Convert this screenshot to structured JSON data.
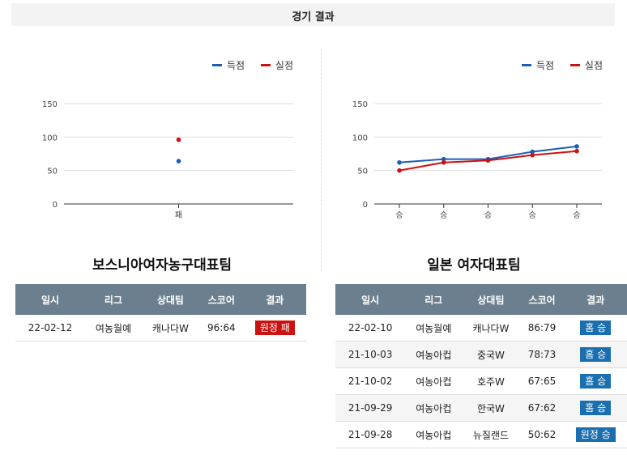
{
  "header": {
    "title": "경기 결과"
  },
  "legend": {
    "scored": "득점",
    "conceded": "실점",
    "scored_color": "#1a5fb4",
    "conceded_color": "#cc1111"
  },
  "left": {
    "team": "보스니아여자농구대표팀",
    "columns": [
      "일시",
      "리그",
      "상대팀",
      "스코어",
      "결과"
    ],
    "rows": [
      {
        "date": "22-02-12",
        "league": "여농월예",
        "opponent": "캐나다W",
        "score": "96:64",
        "result": "원정 패",
        "outcome": "loss"
      }
    ]
  },
  "right": {
    "team": "일본 여자대표팀",
    "columns": [
      "일시",
      "리그",
      "상대팀",
      "스코어",
      "결과"
    ],
    "rows": [
      {
        "date": "22-02-10",
        "league": "여농월예",
        "opponent": "캐나다W",
        "score": "86:79",
        "result": "홈 승",
        "outcome": "win"
      },
      {
        "date": "21-10-03",
        "league": "여농아컵",
        "opponent": "중국W",
        "score": "78:73",
        "result": "홈 승",
        "outcome": "win"
      },
      {
        "date": "21-10-02",
        "league": "여농아컵",
        "opponent": "호주W",
        "score": "67:65",
        "result": "홈 승",
        "outcome": "win"
      },
      {
        "date": "21-09-29",
        "league": "여농아컵",
        "opponent": "한국W",
        "score": "67:62",
        "result": "홈 승",
        "outcome": "win"
      },
      {
        "date": "21-09-28",
        "league": "여농아컵",
        "opponent": "뉴질랜드",
        "score": "50:62",
        "result": "원정 승",
        "outcome": "win"
      }
    ]
  },
  "chart_data": [
    {
      "type": "line",
      "categories": [
        "패"
      ],
      "series": [
        {
          "name": "득점",
          "values": [
            64
          ],
          "color": "#1a5fb4"
        },
        {
          "name": "실점",
          "values": [
            96
          ],
          "color": "#cc1111"
        }
      ],
      "ylim": [
        0,
        150
      ],
      "yticks": [
        0,
        50,
        100,
        150
      ],
      "grid": true,
      "legend": "top-right"
    },
    {
      "type": "line",
      "categories": [
        "승",
        "승",
        "승",
        "승",
        "승"
      ],
      "series": [
        {
          "name": "득점",
          "values": [
            62,
            67,
            67,
            78,
            86
          ],
          "color": "#1a5fb4"
        },
        {
          "name": "실점",
          "values": [
            50,
            62,
            65,
            73,
            79
          ],
          "color": "#cc1111"
        }
      ],
      "ylim": [
        0,
        150
      ],
      "yticks": [
        0,
        50,
        100,
        150
      ],
      "grid": true,
      "legend": "top-right"
    }
  ]
}
